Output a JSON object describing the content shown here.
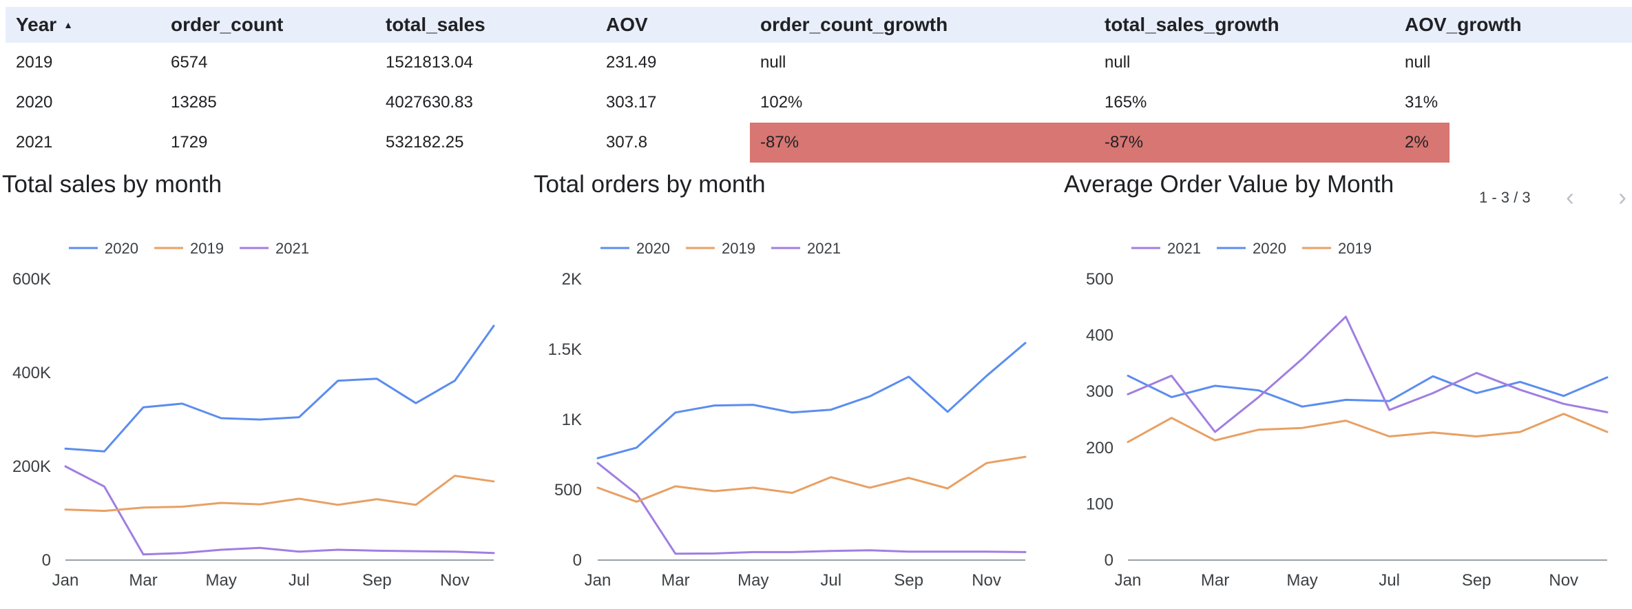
{
  "table": {
    "headers": [
      "Year",
      "order_count",
      "total_sales",
      "AOV",
      "order_count_growth",
      "total_sales_growth",
      "AOV_growth"
    ],
    "sort_icon": "sort-ascending-icon",
    "rows": [
      [
        "2019",
        "6574",
        "1521813.04",
        "231.49",
        "null",
        "null",
        "null"
      ],
      [
        "2020",
        "13285",
        "4027630.83",
        "303.17",
        "102%",
        "165%",
        "31%"
      ],
      [
        "2021",
        "1729",
        "532182.25",
        "307.8",
        "-87%",
        "-87%",
        "2%"
      ]
    ],
    "highlight_color": "#d77672"
  },
  "pagination": {
    "label": "1 - 3 / 3",
    "prev_icon": "chevron-left-icon",
    "next_icon": "chevron-right-icon"
  },
  "colors": {
    "2020": "#5b8def",
    "2019": "#e8a063",
    "2021": "#a07ee0"
  },
  "chart_data": [
    {
      "type": "line",
      "title": "Total sales by month",
      "legend": [
        "2020",
        "2019",
        "2021"
      ],
      "x": [
        "Jan",
        "Feb",
        "Mar",
        "Apr",
        "May",
        "Jun",
        "Jul",
        "Aug",
        "Sep",
        "Oct",
        "Nov",
        "Dec"
      ],
      "x_tick_labels": [
        "Jan",
        "Mar",
        "May",
        "Jul",
        "Sep",
        "Nov"
      ],
      "y_tick_labels": [
        "0",
        "200K",
        "400K",
        "600K"
      ],
      "ylim": [
        0,
        600000
      ],
      "series": [
        {
          "name": "2020",
          "values": [
            238000,
            232000,
            326000,
            334000,
            303000,
            300000,
            305000,
            383000,
            387000,
            335000,
            383000,
            500000
          ]
        },
        {
          "name": "2019",
          "values": [
            108000,
            105000,
            112000,
            114000,
            122000,
            119000,
            131000,
            118000,
            130000,
            118000,
            180000,
            168000
          ]
        },
        {
          "name": "2021",
          "values": [
            200000,
            157000,
            12000,
            15000,
            22000,
            26000,
            18000,
            22000,
            20000,
            19000,
            18000,
            15000
          ]
        }
      ]
    },
    {
      "type": "line",
      "title": "Total orders by month",
      "legend": [
        "2020",
        "2019",
        "2021"
      ],
      "x": [
        "Jan",
        "Feb",
        "Mar",
        "Apr",
        "May",
        "Jun",
        "Jul",
        "Aug",
        "Sep",
        "Oct",
        "Nov",
        "Dec"
      ],
      "x_tick_labels": [
        "Jan",
        "Mar",
        "May",
        "Jul",
        "Sep",
        "Nov"
      ],
      "y_tick_labels": [
        "0",
        "500",
        "1K",
        "1.5K",
        "2K"
      ],
      "ylim": [
        0,
        2000
      ],
      "series": [
        {
          "name": "2020",
          "values": [
            725,
            800,
            1050,
            1100,
            1105,
            1050,
            1070,
            1165,
            1305,
            1055,
            1310,
            1545
          ]
        },
        {
          "name": "2019",
          "values": [
            515,
            415,
            525,
            490,
            515,
            478,
            590,
            515,
            585,
            510,
            690,
            735
          ]
        },
        {
          "name": "2021",
          "values": [
            690,
            470,
            45,
            47,
            57,
            57,
            65,
            70,
            60,
            60,
            60,
            57
          ]
        }
      ]
    },
    {
      "type": "line",
      "title": "Average Order Value by Month",
      "legend": [
        "2021",
        "2020",
        "2019"
      ],
      "x": [
        "Jan",
        "Feb",
        "Mar",
        "Apr",
        "May",
        "Jun",
        "Jul",
        "Aug",
        "Sep",
        "Oct",
        "Nov",
        "Dec"
      ],
      "x_tick_labels": [
        "Jan",
        "Mar",
        "May",
        "Jul",
        "Sep",
        "Nov"
      ],
      "y_tick_labels": [
        "0",
        "100",
        "200",
        "300",
        "400",
        "500"
      ],
      "ylim": [
        0,
        500
      ],
      "series": [
        {
          "name": "2021",
          "values": [
            295,
            328,
            228,
            290,
            358,
            433,
            267,
            297,
            333,
            303,
            278,
            263
          ]
        },
        {
          "name": "2020",
          "values": [
            328,
            290,
            310,
            302,
            273,
            285,
            283,
            327,
            297,
            317,
            292,
            325
          ]
        },
        {
          "name": "2019",
          "values": [
            210,
            253,
            213,
            232,
            235,
            248,
            220,
            227,
            220,
            228,
            260,
            228
          ]
        }
      ]
    }
  ]
}
